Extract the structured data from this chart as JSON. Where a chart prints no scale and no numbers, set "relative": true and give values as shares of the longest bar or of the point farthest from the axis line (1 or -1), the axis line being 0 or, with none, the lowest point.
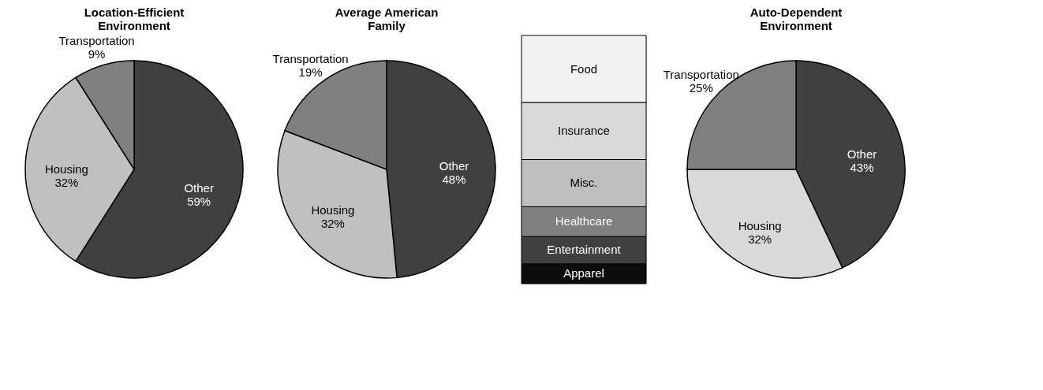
{
  "chart_data": [
    {
      "type": "pie",
      "title": "Location-Efficient Environment",
      "categories": [
        "Other",
        "Housing",
        "Transportation"
      ],
      "values": [
        59,
        32,
        9
      ],
      "value_labels": [
        "59%",
        "32%",
        "9%"
      ],
      "colors": [
        "#404040",
        "#c0c0c0",
        "#808080"
      ]
    },
    {
      "type": "pie",
      "title": "Average American Family",
      "categories": [
        "Other",
        "Housing",
        "Transportation"
      ],
      "values": [
        48,
        32,
        19
      ],
      "value_labels": [
        "48%",
        "32%",
        "19%"
      ],
      "colors": [
        "#404040",
        "#c0c0c0",
        "#808080"
      ]
    },
    {
      "type": "bar",
      "stacked": true,
      "relative": true,
      "categories": [
        null
      ],
      "series": [
        {
          "name": "Apparel",
          "color": "#0d0d0d",
          "values": [
            0.08
          ]
        },
        {
          "name": "Entertainment",
          "color": "#404040",
          "values": [
            0.11
          ]
        },
        {
          "name": "Healthcare",
          "color": "#808080",
          "values": [
            0.12
          ]
        },
        {
          "name": "Misc.",
          "color": "#bfbfbf",
          "values": [
            0.19
          ]
        },
        {
          "name": "Insurance",
          "color": "#d9d9d9",
          "values": [
            0.23
          ]
        },
        {
          "name": "Food",
          "color": "#f2f2f2",
          "values": [
            0.27
          ]
        }
      ]
    },
    {
      "type": "pie",
      "title": "Auto-Dependent Environment",
      "categories": [
        "Other",
        "Housing",
        "Transportation"
      ],
      "values": [
        43,
        32,
        25
      ],
      "value_labels": [
        "43%",
        "32%",
        "25%"
      ],
      "colors": [
        "#404040",
        "#d9d9d9",
        "#808080"
      ]
    }
  ]
}
